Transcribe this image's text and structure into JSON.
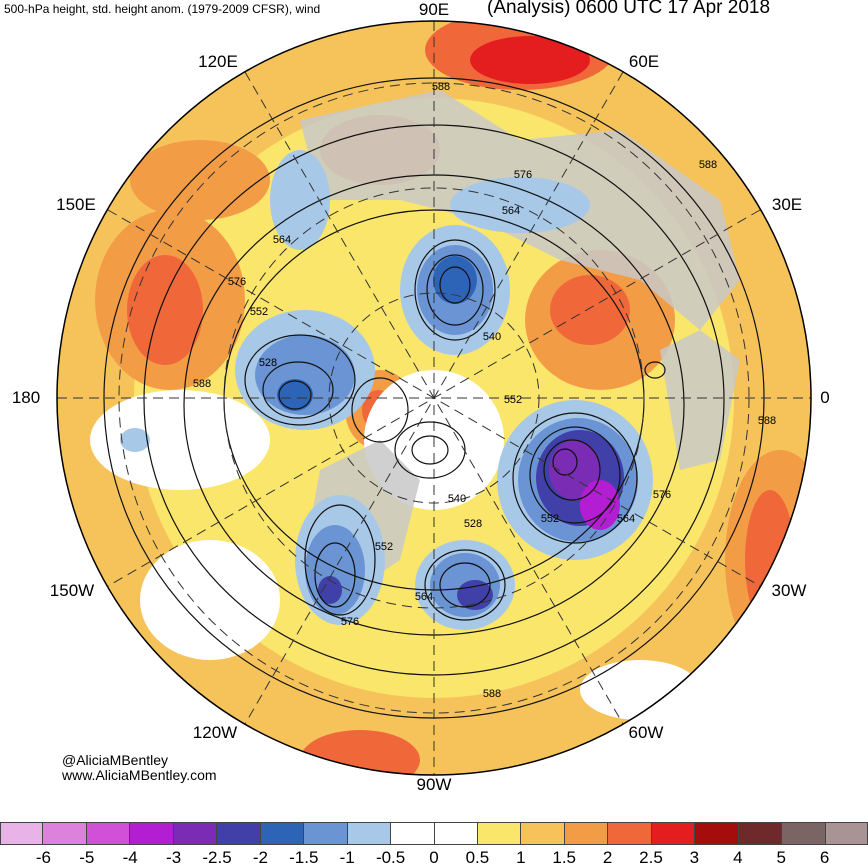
{
  "header": {
    "left_title": "500-hPa height, std. height anom. (1979-2009 CFSR), wind",
    "right_title": "(Analysis) 0600 UTC 17 Apr 2018"
  },
  "longitude_labels": {
    "e90": "90E",
    "e120": "120E",
    "e60": "60E",
    "e150": "150E",
    "e30": "30E",
    "w180": "180",
    "zero": "0",
    "w150": "150W",
    "w30": "30W",
    "w120": "120W",
    "w60": "60W",
    "w90": "90W"
  },
  "contour_labels": [
    "588",
    "576",
    "588",
    "564",
    "564",
    "576",
    "552",
    "528",
    "540",
    "552",
    "588",
    "540",
    "552",
    "528",
    "564",
    "576",
    "552",
    "564",
    "576",
    "588",
    "588"
  ],
  "credits": {
    "twitter": "@AliciaMBentley",
    "website": "www.AliciaMBentley.com"
  },
  "colorbar": {
    "colors": [
      "#e8b4e8",
      "#dc82dc",
      "#d050d8",
      "#b41ed2",
      "#7a2cb4",
      "#4040a8",
      "#2e64b8",
      "#6a94d4",
      "#a8c8e8",
      "#ffffff",
      "#ffffff",
      "#fbe66c",
      "#f5c35a",
      "#f39c46",
      "#f0683a",
      "#e41e1e",
      "#a50c0c",
      "#6e2a2a",
      "#7a6464",
      "#a89494"
    ],
    "ticks": [
      "-6",
      "-5",
      "-4",
      "-3",
      "-2.5",
      "-2",
      "-1.5",
      "-1",
      "-0.5",
      "0",
      "0.5",
      "1",
      "1.5",
      "2",
      "2.5",
      "3",
      "4",
      "5",
      "6"
    ]
  },
  "colors": {
    "positive_warm": "#f39c46",
    "positive_light": "#fbe66c",
    "negative_blue": "#6a94d4",
    "negative_deep": "#4040a8",
    "land_gray": "#c8c8c8"
  }
}
